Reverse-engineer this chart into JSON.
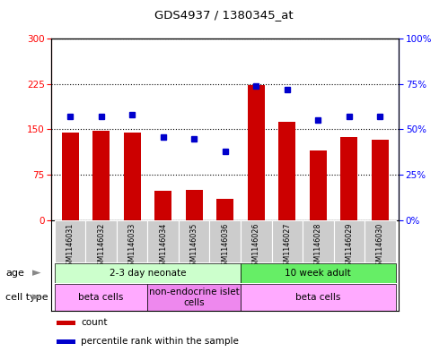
{
  "title": "GDS4937 / 1380345_at",
  "samples": [
    "GSM1146031",
    "GSM1146032",
    "GSM1146033",
    "GSM1146034",
    "GSM1146035",
    "GSM1146036",
    "GSM1146026",
    "GSM1146027",
    "GSM1146028",
    "GSM1146029",
    "GSM1146030"
  ],
  "counts": [
    145,
    148,
    145,
    48,
    50,
    35,
    223,
    163,
    115,
    138,
    133
  ],
  "percentiles": [
    57,
    57,
    58,
    46,
    45,
    38,
    74,
    72,
    55,
    57,
    57
  ],
  "left_ylim": [
    0,
    300
  ],
  "right_ylim": [
    0,
    100
  ],
  "left_yticks": [
    0,
    75,
    150,
    225,
    300
  ],
  "right_yticks": [
    0,
    25,
    50,
    75,
    100
  ],
  "right_yticklabels": [
    "0%",
    "25%",
    "50%",
    "75%",
    "100%"
  ],
  "bar_color": "#cc0000",
  "dot_color": "#0000cc",
  "age_groups": [
    {
      "label": "2-3 day neonate",
      "start": 0,
      "end": 6,
      "color": "#ccffcc"
    },
    {
      "label": "10 week adult",
      "start": 6,
      "end": 11,
      "color": "#66ee66"
    }
  ],
  "cell_type_groups": [
    {
      "label": "beta cells",
      "start": 0,
      "end": 3,
      "color": "#ffaaff"
    },
    {
      "label": "non-endocrine islet\ncells",
      "start": 3,
      "end": 6,
      "color": "#ee88ee"
    },
    {
      "label": "beta cells",
      "start": 6,
      "end": 11,
      "color": "#ffaaff"
    }
  ],
  "legend_items": [
    {
      "color": "#cc0000",
      "label": "count"
    },
    {
      "color": "#0000cc",
      "label": "percentile rank within the sample"
    }
  ],
  "bar_width": 0.55,
  "tick_label_bg": "#cccccc",
  "outer_border_color": "#888888"
}
